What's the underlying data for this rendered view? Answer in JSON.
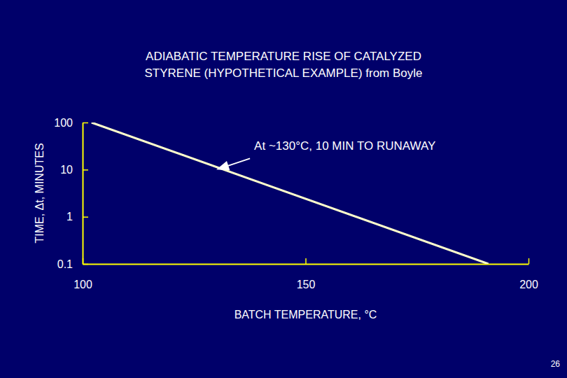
{
  "chart_data": {
    "type": "line",
    "title": [
      "ADIABATIC TEMPERATURE RISE OF CATALYZED",
      "STYRENE (HYPOTHETICAL EXAMPLE) from Boyle"
    ],
    "x_label": "BATCH TEMPERATURE, °C",
    "y_label": "TIME, Δt, MINUTES",
    "x": [
      102,
      191
    ],
    "values": [
      100,
      0.1
    ],
    "color": "#ffffcc",
    "xlim": [
      100,
      200
    ],
    "xticks": [
      100,
      150,
      200
    ],
    "ylim": [
      0.1,
      100
    ],
    "yticks": [
      0.1,
      1,
      10,
      100
    ],
    "log": "y",
    "grid": false,
    "annotations": [
      {
        "text": "At ~130°C, 10 MIN TO RUNAWAY",
        "x": 130,
        "y": 10
      }
    ],
    "page_number": "26"
  }
}
